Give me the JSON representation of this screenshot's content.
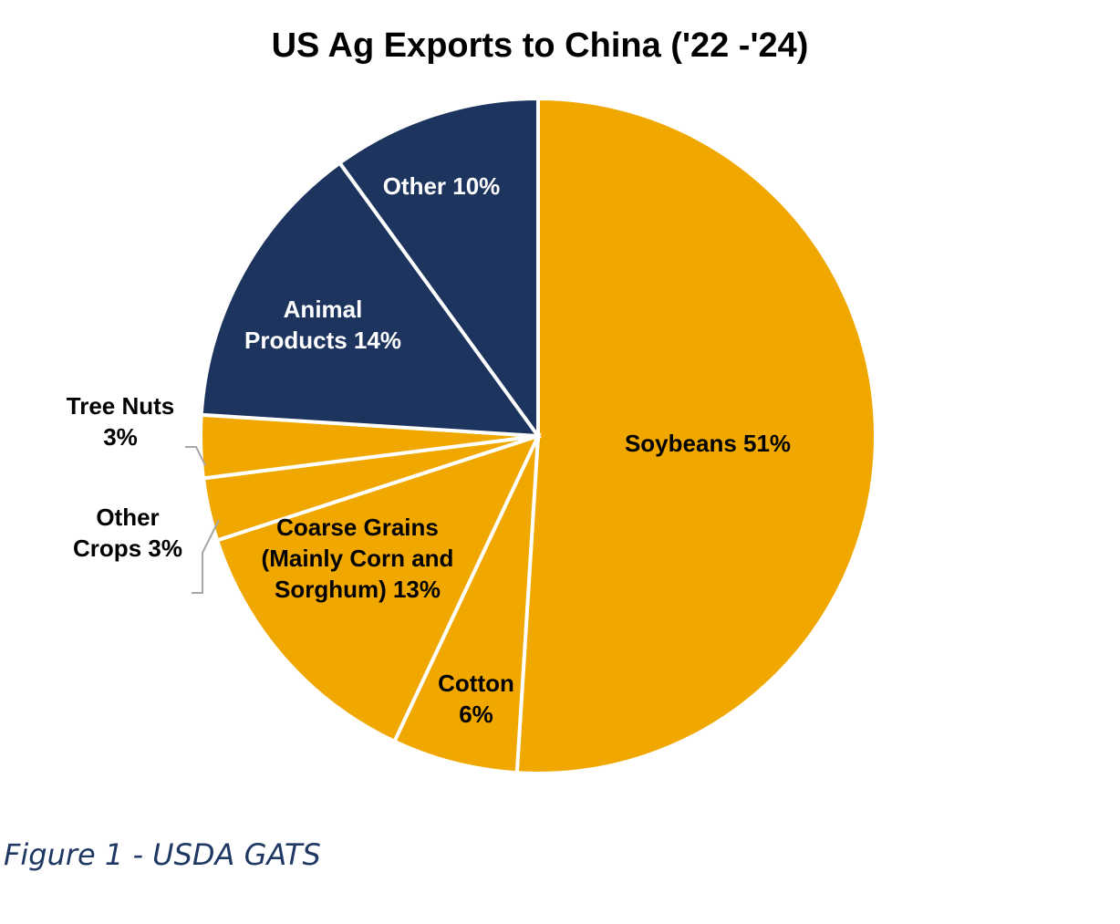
{
  "chart_data": {
    "type": "pie",
    "title": "US Ag Exports to China ('22 -'24)",
    "start_angle_deg": 0,
    "direction": "clockwise",
    "slices": [
      {
        "name": "Soybeans",
        "value": 51,
        "color": "#f0a800",
        "label_lines": [
          "Soybeans 51%"
        ],
        "label_color": "#000000"
      },
      {
        "name": "Cotton",
        "value": 6,
        "color": "#f0a800",
        "label_lines": [
          "Cotton",
          "6%"
        ],
        "label_color": "#000000"
      },
      {
        "name": "Coarse Grains (Mainly Corn and Sorghum)",
        "value": 13,
        "color": "#f0a800",
        "label_lines": [
          "Coarse Grains",
          "(Mainly Corn and",
          "Sorghum) 13%"
        ],
        "label_color": "#000000"
      },
      {
        "name": "Other Crops",
        "value": 3,
        "color": "#f0a800",
        "label_lines": [
          "Other",
          "Crops 3%"
        ],
        "label_color": "#000000",
        "label_outside": true
      },
      {
        "name": "Tree Nuts",
        "value": 3,
        "color": "#f0a800",
        "label_lines": [
          "Tree Nuts",
          "3%"
        ],
        "label_color": "#000000",
        "label_outside": true
      },
      {
        "name": "Animal Products",
        "value": 14,
        "color": "#1d355e",
        "label_lines": [
          "Animal",
          "Products 14%"
        ],
        "label_color": "#ffffff"
      },
      {
        "name": "Other",
        "value": 10,
        "color": "#1d355e",
        "label_lines": [
          "Other 10%"
        ],
        "label_color": "#ffffff"
      }
    ]
  },
  "caption": "Figure 1 - USDA GATS"
}
